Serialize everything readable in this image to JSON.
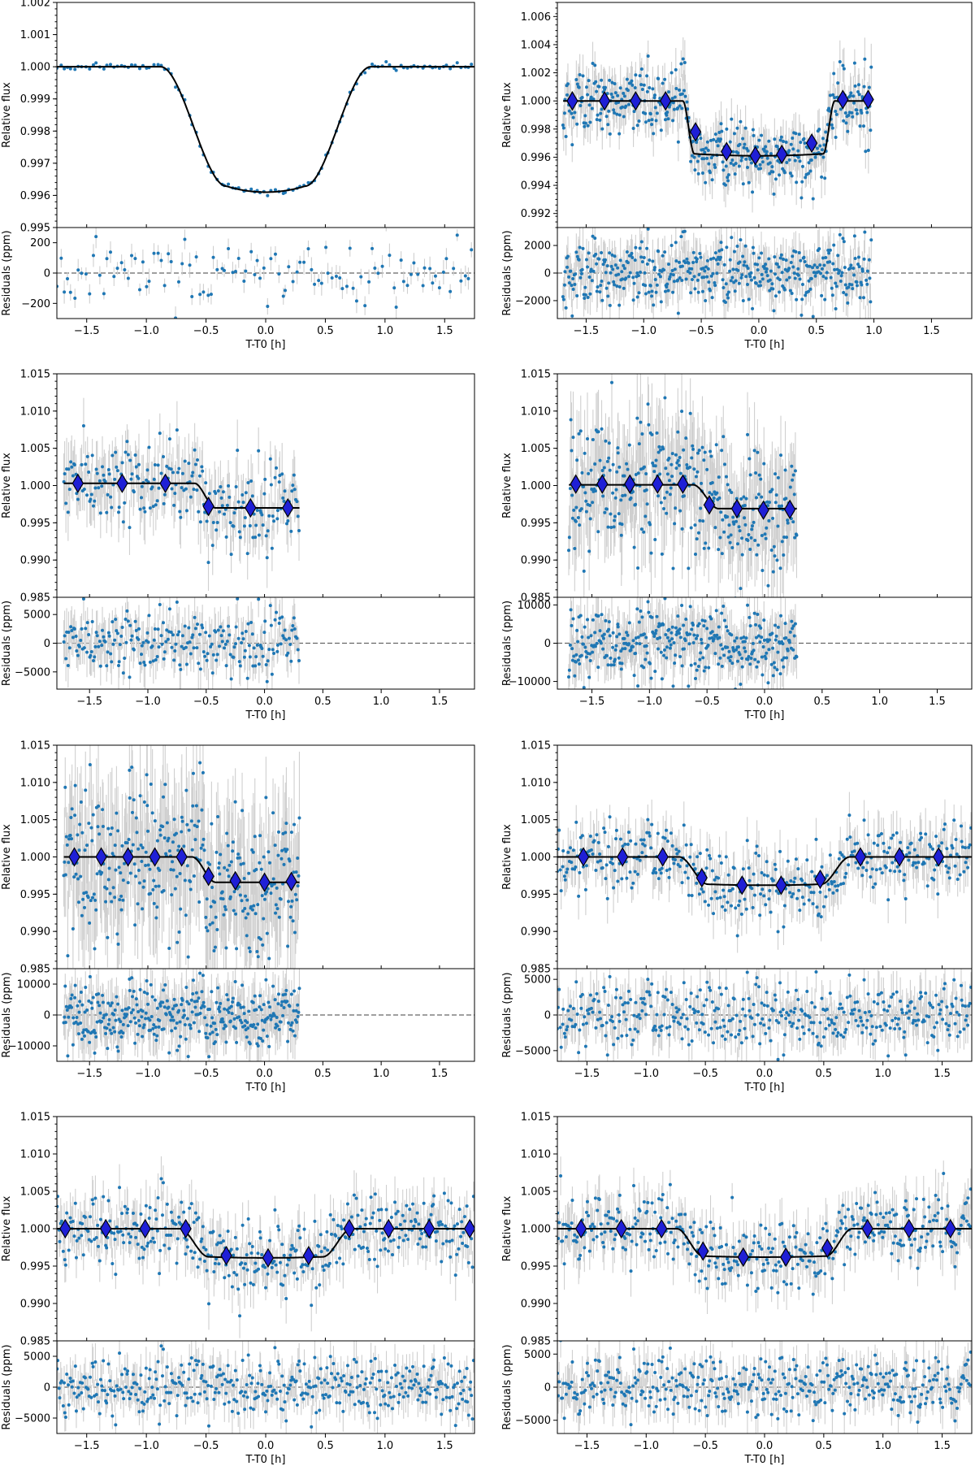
{
  "chart_data": [
    {
      "type": "scatter",
      "panel": "top-left",
      "xlabel": "T-T0 [h]",
      "ylabel": "Relative flux",
      "residual_ylabel": "Residuals (ppm)",
      "xlim": [
        -1.75,
        1.75
      ],
      "ylim": [
        0.995,
        1.002
      ],
      "residual_ylim": [
        -300,
        300
      ],
      "xticks": [
        -1.5,
        -1.0,
        -0.5,
        0.0,
        0.5,
        1.0,
        1.5
      ],
      "xtick_labels": [
        "−1.5",
        "−1.0",
        "−0.5",
        "0.0",
        "0.5",
        "1.0",
        "1.5"
      ],
      "yticks": [
        0.995,
        0.996,
        0.997,
        0.998,
        0.999,
        1.0,
        1.001,
        1.002
      ],
      "ytick_labels": [
        "0.995",
        "0.996",
        "0.997",
        "0.998",
        "0.999",
        "1.000",
        "1.001",
        "1.002"
      ],
      "residual_yticks": [
        -200,
        0,
        200
      ],
      "residual_ytick_labels": [
        "−200",
        "0",
        "200"
      ],
      "data_range": [
        -1.75,
        1.75
      ],
      "cadence_h": 0.03,
      "model": {
        "depth": 0.0039,
        "t1": 0.88,
        "t2": 0.33,
        "baseline": 1.0,
        "curvature": 0.4,
        "jump": false
      },
      "flux_scatter": 5e-05,
      "residual_scatter": 100,
      "error_bar": 3e-05,
      "binned": [],
      "seed": 11
    },
    {
      "type": "scatter",
      "panel": "top-right",
      "xlabel": "T-T0 [h]",
      "ylabel": "Relative flux",
      "residual_ylabel": "Residuals (ppm)",
      "xlim": [
        -1.75,
        1.85
      ],
      "ylim": [
        0.991,
        1.007
      ],
      "residual_ylim": [
        -3300,
        3300
      ],
      "xticks": [
        -1.5,
        -1.0,
        -0.5,
        0.0,
        0.5,
        1.0,
        1.5
      ],
      "xtick_labels": [
        "−1.5",
        "−1.0",
        "−0.5",
        "0.0",
        "0.5",
        "1.0",
        "1.5"
      ],
      "yticks": [
        0.992,
        0.994,
        0.996,
        0.998,
        1.0,
        1.002,
        1.004,
        1.006
      ],
      "ytick_labels": [
        "0.992",
        "0.994",
        "0.996",
        "0.998",
        "1.000",
        "1.002",
        "1.004",
        "1.006"
      ],
      "residual_yticks": [
        -2000,
        0,
        2000
      ],
      "residual_ytick_labels": [
        "−2000",
        "0",
        "2000"
      ],
      "data_range": [
        -1.7,
        0.98
      ],
      "cadence_h": 0.006,
      "model": {
        "depth": 0.0039,
        "t1": 0.66,
        "t2": 0.56,
        "baseline": 1.0,
        "curvature": 0.3,
        "jump": false
      },
      "flux_scatter": 0.0011,
      "residual_scatter": 1100,
      "error_bar": 0.0012,
      "binned": [
        [
          -1.62,
          1.0
        ],
        [
          -1.34,
          1.0
        ],
        [
          -1.07,
          1.0
        ],
        [
          -0.81,
          1.0
        ],
        [
          -0.55,
          0.9978
        ],
        [
          -0.28,
          0.9964
        ],
        [
          -0.03,
          0.9961
        ],
        [
          0.2,
          0.9962
        ],
        [
          0.46,
          0.997
        ],
        [
          0.73,
          1.0001
        ],
        [
          0.95,
          1.0001
        ]
      ],
      "seed": 23
    },
    {
      "type": "scatter",
      "panel": "row2-left",
      "xlabel": "T-T0 [h]",
      "ylabel": "Relative flux",
      "residual_ylabel": "Residuals (ppm)",
      "xlim": [
        -1.78,
        1.8
      ],
      "ylim": [
        0.985,
        1.015
      ],
      "residual_ylim": [
        -8000,
        8000
      ],
      "xticks": [
        -1.5,
        -1.0,
        -0.5,
        0.0,
        0.5,
        1.0,
        1.5
      ],
      "xtick_labels": [
        "−1.5",
        "−1.0",
        "−0.5",
        "0.0",
        "0.5",
        "1.0",
        "1.5"
      ],
      "yticks": [
        0.985,
        0.99,
        0.995,
        1.0,
        1.005,
        1.01,
        1.015
      ],
      "ytick_labels": [
        "0.985",
        "0.990",
        "0.995",
        "1.000",
        "1.005",
        "1.010",
        "1.015"
      ],
      "residual_yticks": [
        -5000,
        0,
        5000
      ],
      "residual_ytick_labels": [
        "−5000",
        "0",
        "5000"
      ],
      "data_range": [
        -1.72,
        0.3
      ],
      "cadence_h": 0.0085,
      "model": {
        "depth": 0.0033,
        "t1": 0.6,
        "t2": 0.42,
        "baseline": 1.0003,
        "curvature": 0.0,
        "jump": true
      },
      "flux_scatter": 0.0028,
      "residual_scatter": 2800,
      "error_bar": 0.0032,
      "binned": [
        [
          -1.6,
          1.0003
        ],
        [
          -1.22,
          1.0003
        ],
        [
          -0.85,
          1.0003
        ],
        [
          -0.48,
          0.9972
        ],
        [
          -0.12,
          0.997
        ],
        [
          0.2,
          0.997
        ]
      ],
      "seed": 37
    },
    {
      "type": "scatter",
      "panel": "row2-right",
      "xlabel": "T-T0 [h]",
      "ylabel": "Relative flux",
      "residual_ylabel": "Residuals (ppm)",
      "xlim": [
        -1.8,
        1.8
      ],
      "ylim": [
        0.985,
        1.015
      ],
      "residual_ylim": [
        -12000,
        12000
      ],
      "xticks": [
        -1.5,
        -1.0,
        -0.5,
        0.0,
        0.5,
        1.0,
        1.5
      ],
      "xtick_labels": [
        "−1.5",
        "−1.0",
        "−0.5",
        "0.0",
        "0.5",
        "1.0",
        "1.5"
      ],
      "yticks": [
        0.985,
        0.99,
        0.995,
        1.0,
        1.005,
        1.01,
        1.015
      ],
      "ytick_labels": [
        "0.985",
        "0.990",
        "0.995",
        "1.000",
        "1.005",
        "1.010",
        "1.015"
      ],
      "residual_yticks": [
        -10000,
        0,
        10000
      ],
      "residual_ytick_labels": [
        "−10000",
        "0",
        "10000"
      ],
      "data_range": [
        -1.7,
        0.28
      ],
      "cadence_h": 0.0055,
      "model": {
        "depth": 0.0032,
        "t1": 0.62,
        "t2": 0.4,
        "baseline": 1.0001,
        "curvature": 0.0,
        "jump": true
      },
      "flux_scatter": 0.0045,
      "residual_scatter": 4500,
      "error_bar": 0.005,
      "binned": [
        [
          -1.64,
          1.0002
        ],
        [
          -1.41,
          1.0002
        ],
        [
          -1.17,
          1.0002
        ],
        [
          -0.93,
          1.0002
        ],
        [
          -0.71,
          1.0002
        ],
        [
          -0.48,
          0.9974
        ],
        [
          -0.24,
          0.9969
        ],
        [
          -0.01,
          0.9967
        ],
        [
          0.22,
          0.9968
        ]
      ],
      "seed": 51
    },
    {
      "type": "scatter",
      "panel": "row3-left",
      "xlabel": "T-T0 [h]",
      "ylabel": "Relative flux",
      "residual_ylabel": "Residuals (ppm)",
      "xlim": [
        -1.78,
        1.8
      ],
      "ylim": [
        0.985,
        1.015
      ],
      "residual_ylim": [
        -15000,
        15000
      ],
      "xticks": [
        -1.5,
        -1.0,
        -0.5,
        0.0,
        0.5,
        1.0,
        1.5
      ],
      "xtick_labels": [
        "−1.5",
        "−1.0",
        "−0.5",
        "0.0",
        "0.5",
        "1.0",
        "1.5"
      ],
      "yticks": [
        0.985,
        0.99,
        0.995,
        1.0,
        1.005,
        1.01,
        1.015
      ],
      "ytick_labels": [
        "0.985",
        "0.990",
        "0.995",
        "1.000",
        "1.005",
        "1.010",
        "1.015"
      ],
      "residual_yticks": [
        -10000,
        0,
        10000
      ],
      "residual_ytick_labels": [
        "−10000",
        "0",
        "10000"
      ],
      "data_range": [
        -1.72,
        0.3
      ],
      "cadence_h": 0.0055,
      "model": {
        "depth": 0.0034,
        "t1": 0.62,
        "t2": 0.42,
        "baseline": 1.0,
        "curvature": 0.0,
        "jump": true
      },
      "flux_scatter": 0.0055,
      "residual_scatter": 5500,
      "error_bar": 0.0065,
      "binned": [
        [
          -1.63,
          1.0
        ],
        [
          -1.4,
          1.0
        ],
        [
          -1.17,
          1.0
        ],
        [
          -0.94,
          1.0
        ],
        [
          -0.71,
          1.0
        ],
        [
          -0.48,
          0.9974
        ],
        [
          -0.25,
          0.9968
        ],
        [
          0.0,
          0.9966
        ],
        [
          0.23,
          0.9967
        ]
      ],
      "seed": 63
    },
    {
      "type": "scatter",
      "panel": "row3-right",
      "xlabel": "T-T0 [h]",
      "ylabel": "Relative flux",
      "residual_ylabel": "Residuals (ppm)",
      "xlim": [
        -1.75,
        1.75
      ],
      "ylim": [
        0.985,
        1.015
      ],
      "residual_ylim": [
        -6500,
        6500
      ],
      "xticks": [
        -1.5,
        -1.0,
        -0.5,
        0.0,
        0.5,
        1.0,
        1.5
      ],
      "xtick_labels": [
        "−1.5",
        "−1.0",
        "−0.5",
        "0.0",
        "0.5",
        "1.0",
        "1.5"
      ],
      "yticks": [
        0.985,
        0.99,
        0.995,
        1.0,
        1.005,
        1.01,
        1.015
      ],
      "ytick_labels": [
        "0.985",
        "0.990",
        "0.995",
        "1.000",
        "1.005",
        "1.010",
        "1.015"
      ],
      "residual_yticks": [
        -5000,
        0,
        5000
      ],
      "residual_ytick_labels": [
        "−5000",
        "0",
        "5000"
      ],
      "data_range": [
        -1.75,
        1.75
      ],
      "cadence_h": 0.0085,
      "model": {
        "depth": 0.0038,
        "t1": 0.72,
        "t2": 0.48,
        "baseline": 1.0,
        "curvature": 0.3,
        "jump": false
      },
      "flux_scatter": 0.0023,
      "residual_scatter": 2300,
      "error_bar": 0.0025,
      "binned": [
        [
          -1.53,
          1.0
        ],
        [
          -1.2,
          1.0
        ],
        [
          -0.86,
          1.0
        ],
        [
          -0.53,
          0.9972
        ],
        [
          -0.19,
          0.9962
        ],
        [
          0.14,
          0.9962
        ],
        [
          0.47,
          0.997
        ],
        [
          0.81,
          1.0
        ],
        [
          1.14,
          1.0
        ],
        [
          1.47,
          1.0
        ]
      ],
      "seed": 77
    },
    {
      "type": "scatter",
      "panel": "bottom-left",
      "xlabel": "T-T0 [h]",
      "ylabel": "Relative flux",
      "residual_ylabel": "Residuals (ppm)",
      "xlim": [
        -1.75,
        1.75
      ],
      "ylim": [
        0.985,
        1.015
      ],
      "residual_ylim": [
        -7500,
        7500
      ],
      "xticks": [
        -1.5,
        -1.0,
        -0.5,
        0.0,
        0.5,
        1.0,
        1.5
      ],
      "xtick_labels": [
        "−1.5",
        "−1.0",
        "−0.5",
        "0.0",
        "0.5",
        "1.0",
        "1.5"
      ],
      "yticks": [
        0.985,
        0.99,
        0.995,
        1.0,
        1.005,
        1.01,
        1.015
      ],
      "ytick_labels": [
        "0.985",
        "0.990",
        "0.995",
        "1.000",
        "1.005",
        "1.010",
        "1.015"
      ],
      "residual_yticks": [
        -5000,
        0,
        5000
      ],
      "residual_ytick_labels": [
        "−5000",
        "0",
        "5000"
      ],
      "data_range": [
        -1.75,
        1.75
      ],
      "cadence_h": 0.0085,
      "model": {
        "depth": 0.0039,
        "t1": 0.72,
        "t2": 0.48,
        "baseline": 1.0,
        "curvature": 0.3,
        "jump": false
      },
      "flux_scatter": 0.0024,
      "residual_scatter": 2400,
      "error_bar": 0.0026,
      "binned": [
        [
          -1.68,
          1.0
        ],
        [
          -1.34,
          1.0
        ],
        [
          -1.01,
          1.0
        ],
        [
          -0.67,
          1.0
        ],
        [
          -0.33,
          0.9964
        ],
        [
          0.02,
          0.9961
        ],
        [
          0.36,
          0.9964
        ],
        [
          0.7,
          1.0
        ],
        [
          1.03,
          1.0
        ],
        [
          1.37,
          1.0
        ],
        [
          1.71,
          1.0
        ]
      ],
      "seed": 89
    },
    {
      "type": "scatter",
      "panel": "bottom-right",
      "xlabel": "T-T0 [h]",
      "ylabel": "Relative flux",
      "residual_ylabel": "Residuals (ppm)",
      "xlim": [
        -1.75,
        1.75
      ],
      "ylim": [
        0.985,
        1.015
      ],
      "residual_ylim": [
        -7000,
        7000
      ],
      "xticks": [
        -1.5,
        -1.0,
        -0.5,
        0.0,
        0.5,
        1.0,
        1.5
      ],
      "xtick_labels": [
        "−1.5",
        "−1.0",
        "−0.5",
        "0.0",
        "0.5",
        "1.0",
        "1.5"
      ],
      "yticks": [
        0.985,
        0.99,
        0.995,
        1.0,
        1.005,
        1.01,
        1.015
      ],
      "ytick_labels": [
        "0.985",
        "0.990",
        "0.995",
        "1.000",
        "1.005",
        "1.010",
        "1.015"
      ],
      "residual_yticks": [
        -5000,
        0,
        5000
      ],
      "residual_ytick_labels": [
        "−5000",
        "0",
        "5000"
      ],
      "data_range": [
        -1.75,
        1.75
      ],
      "cadence_h": 0.0085,
      "model": {
        "depth": 0.0038,
        "t1": 0.74,
        "t2": 0.52,
        "baseline": 1.0,
        "curvature": 0.3,
        "jump": false
      },
      "flux_scatter": 0.0024,
      "residual_scatter": 2400,
      "error_bar": 0.0026,
      "binned": [
        [
          -1.55,
          1.0
        ],
        [
          -1.21,
          1.0
        ],
        [
          -0.87,
          1.0
        ],
        [
          -0.52,
          0.997
        ],
        [
          -0.18,
          0.9962
        ],
        [
          0.18,
          0.9962
        ],
        [
          0.53,
          0.9974
        ],
        [
          0.87,
          1.0
        ],
        [
          1.22,
          1.0
        ],
        [
          1.57,
          1.0
        ]
      ],
      "seed": 97
    }
  ]
}
